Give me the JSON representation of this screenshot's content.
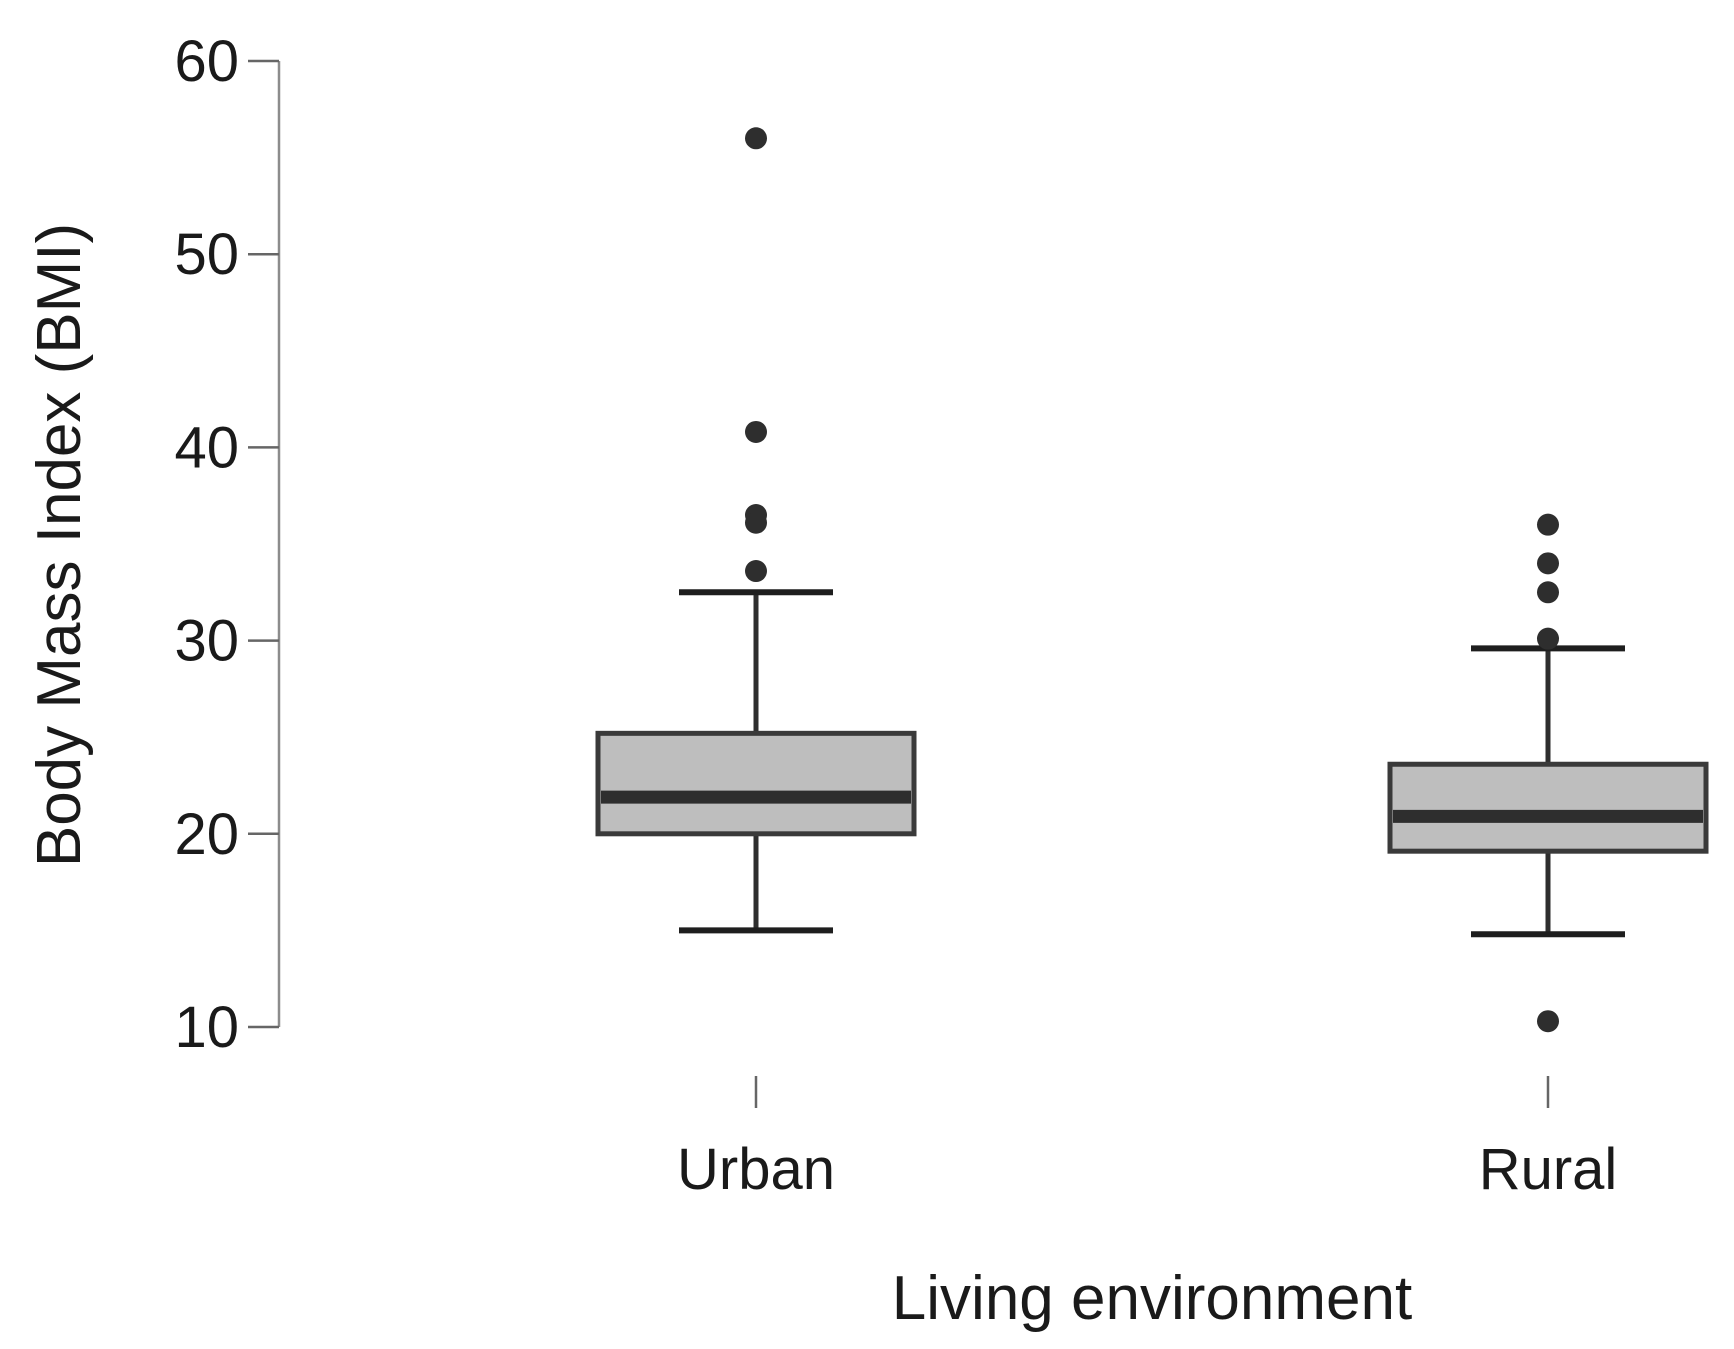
{
  "chart_data": {
    "type": "box",
    "title": "",
    "xlabel": "Living environment",
    "ylabel": "Body Mass Index (BMI)",
    "ylim": [
      10,
      60
    ],
    "yticks": [
      10,
      20,
      30,
      40,
      50,
      60
    ],
    "categories": [
      "Urban",
      "Rural"
    ],
    "boxes": [
      {
        "category": "Urban",
        "whisker_low": 15.0,
        "q1": 20.0,
        "median": 21.9,
        "q3": 25.2,
        "whisker_high": 32.5,
        "outliers": [
          56.0,
          40.8,
          36.5,
          36.1,
          33.6
        ]
      },
      {
        "category": "Rural",
        "whisker_low": 14.8,
        "q1": 19.1,
        "median": 20.9,
        "q3": 23.6,
        "whisker_high": 29.6,
        "outliers": [
          36.0,
          34.0,
          32.5,
          30.1,
          10.3
        ]
      }
    ],
    "grid": false,
    "legend": "none",
    "colors": {
      "box_fill": "#bebebe",
      "box_stroke": "#3a3a3a",
      "median": "#2e2e2e",
      "outlier": "#2e2e2e"
    }
  }
}
